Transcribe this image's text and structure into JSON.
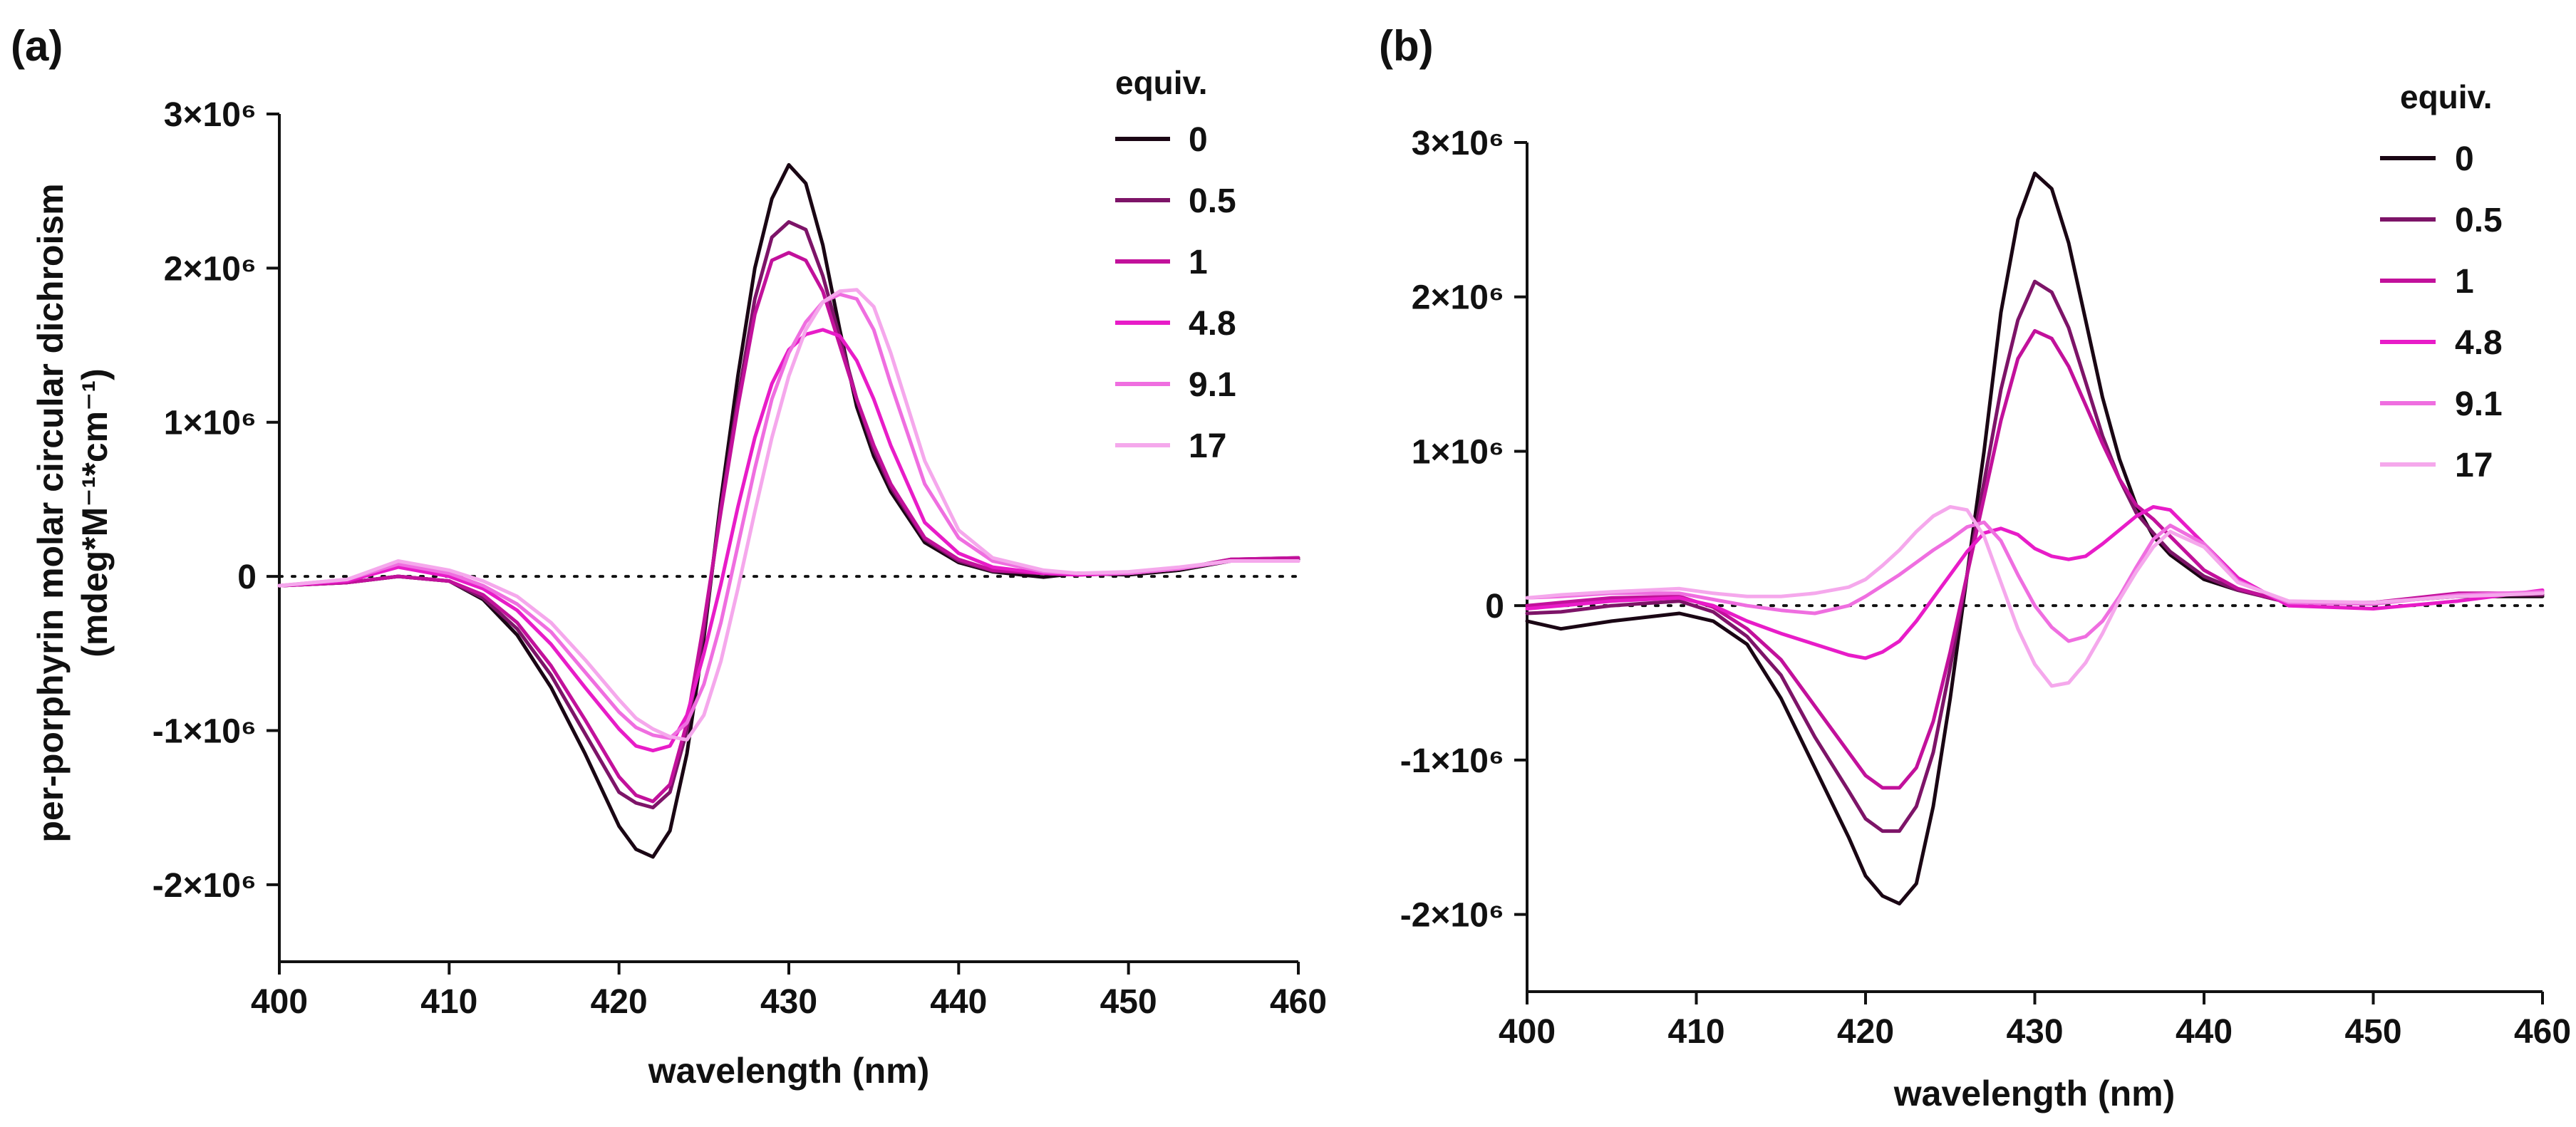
{
  "figure": {
    "ylabel_line1": "per-porphyrin molar circular dichroism",
    "ylabel_line2": "(mdeg*M⁻¹*cm⁻¹)",
    "xlabel": "wavelength (nm)"
  },
  "legend": {
    "title": "equiv."
  },
  "chart_data": [
    {
      "type": "line",
      "panel": "(a)",
      "xlabel": "wavelength (nm)",
      "ylabel": "per-porphyrin molar circular dichroism (mdeg*M⁻¹*cm⁻¹)",
      "xlim": [
        400,
        460
      ],
      "ylim": [
        -2500000,
        3000000
      ],
      "xticks": [
        400,
        410,
        420,
        430,
        440,
        450,
        460
      ],
      "xtick_labels": [
        "400",
        "410",
        "420",
        "430",
        "440",
        "450",
        "460"
      ],
      "yticks": [
        3000000,
        2000000,
        1000000,
        0,
        -1000000,
        -2000000
      ],
      "ytick_labels": [
        "3×10⁶",
        "2×10⁶",
        "1×10⁶",
        "0",
        "-1×10⁶",
        "-2×10⁶"
      ],
      "zero_line": "dotted",
      "legend_title": "equiv.",
      "legend_position": "top-right",
      "x": [
        400,
        404,
        407,
        410,
        412,
        414,
        416,
        418,
        420,
        421,
        422,
        423,
        424,
        425,
        426,
        427,
        428,
        429,
        430,
        431,
        432,
        433,
        434,
        435,
        436,
        438,
        440,
        442,
        445,
        447,
        450,
        453,
        456,
        460
      ],
      "series": [
        {
          "name": "0",
          "color": "#1a0614",
          "values": [
            -60000,
            -40000,
            0,
            -30000,
            -150000,
            -380000,
            -720000,
            -1150000,
            -1620000,
            -1770000,
            -1820000,
            -1650000,
            -1150000,
            -400000,
            500000,
            1300000,
            2000000,
            2450000,
            2670000,
            2550000,
            2150000,
            1600000,
            1100000,
            780000,
            550000,
            220000,
            90000,
            30000,
            -5000,
            20000,
            10000,
            40000,
            100000,
            110000
          ]
        },
        {
          "name": "0.5",
          "color": "#7d1468",
          "values": [
            -60000,
            -40000,
            0,
            -30000,
            -140000,
            -340000,
            -640000,
            -1020000,
            -1400000,
            -1470000,
            -1500000,
            -1400000,
            -1000000,
            -350000,
            450000,
            1150000,
            1800000,
            2200000,
            2300000,
            2250000,
            1950000,
            1550000,
            1150000,
            820000,
            580000,
            240000,
            100000,
            35000,
            20000,
            10000,
            20000,
            50000,
            110000,
            120000
          ]
        },
        {
          "name": "1",
          "color": "#c2119b",
          "values": [
            -60000,
            -40000,
            0,
            -30000,
            -120000,
            -300000,
            -580000,
            -930000,
            -1300000,
            -1420000,
            -1460000,
            -1350000,
            -950000,
            -300000,
            420000,
            1100000,
            1700000,
            2050000,
            2100000,
            2050000,
            1850000,
            1500000,
            1150000,
            850000,
            600000,
            250000,
            110000,
            40000,
            20000,
            10000,
            20000,
            50000,
            110000,
            120000
          ]
        },
        {
          "name": "4.8",
          "color": "#e81cc8",
          "values": [
            -60000,
            -30000,
            60000,
            0,
            -80000,
            -220000,
            -440000,
            -720000,
            -990000,
            -1100000,
            -1130000,
            -1100000,
            -900000,
            -500000,
            -50000,
            450000,
            900000,
            1250000,
            1470000,
            1570000,
            1600000,
            1560000,
            1400000,
            1150000,
            850000,
            350000,
            150000,
            60000,
            20000,
            10000,
            20000,
            50000,
            100000,
            100000
          ]
        },
        {
          "name": "9.1",
          "color": "#ef6ee0",
          "values": [
            -60000,
            -20000,
            80000,
            20000,
            -60000,
            -180000,
            -360000,
            -620000,
            -880000,
            -980000,
            -1030000,
            -1050000,
            -950000,
            -700000,
            -300000,
            200000,
            700000,
            1150000,
            1450000,
            1650000,
            1780000,
            1830000,
            1800000,
            1600000,
            1250000,
            600000,
            250000,
            100000,
            30000,
            20000,
            20000,
            50000,
            100000,
            100000
          ]
        },
        {
          "name": "17",
          "color": "#f5a8ec",
          "values": [
            -60000,
            -20000,
            100000,
            40000,
            -30000,
            -130000,
            -300000,
            -540000,
            -800000,
            -920000,
            -990000,
            -1040000,
            -1060000,
            -900000,
            -550000,
            -80000,
            420000,
            900000,
            1300000,
            1600000,
            1780000,
            1850000,
            1860000,
            1750000,
            1450000,
            750000,
            300000,
            120000,
            40000,
            20000,
            30000,
            60000,
            100000,
            100000
          ]
        }
      ]
    },
    {
      "type": "line",
      "panel": "(b)",
      "xlabel": "wavelength (nm)",
      "ylabel": "",
      "xlim": [
        400,
        460
      ],
      "ylim": [
        -2500000,
        3000000
      ],
      "xticks": [
        400,
        410,
        420,
        430,
        440,
        450,
        460
      ],
      "xtick_labels": [
        "400",
        "410",
        "420",
        "430",
        "440",
        "450",
        "460"
      ],
      "yticks": [
        3000000,
        2000000,
        1000000,
        0,
        -1000000,
        -2000000
      ],
      "ytick_labels": [
        "3×10⁶",
        "2×10⁶",
        "1×10⁶",
        "0",
        "-1×10⁶",
        "-2×10⁶"
      ],
      "zero_line": "dotted",
      "legend_title": "equiv.",
      "legend_position": "top-right",
      "x": [
        400,
        402,
        405,
        409,
        411,
        413,
        415,
        417,
        419,
        420,
        421,
        422,
        423,
        424,
        425,
        426,
        427,
        428,
        429,
        430,
        431,
        432,
        433,
        434,
        435,
        436,
        437,
        438,
        440,
        442,
        445,
        450,
        455,
        460
      ],
      "series": [
        {
          "name": "0",
          "color": "#1a0614",
          "values": [
            -100000,
            -150000,
            -100000,
            -50000,
            -100000,
            -250000,
            -600000,
            -1050000,
            -1500000,
            -1750000,
            -1880000,
            -1930000,
            -1800000,
            -1300000,
            -600000,
            200000,
            1000000,
            1900000,
            2500000,
            2800000,
            2700000,
            2350000,
            1850000,
            1350000,
            950000,
            650000,
            450000,
            330000,
            170000,
            100000,
            20000,
            20000,
            60000,
            60000
          ]
        },
        {
          "name": "0.5",
          "color": "#7d1468",
          "values": [
            -50000,
            -40000,
            0,
            30000,
            -40000,
            -200000,
            -450000,
            -850000,
            -1200000,
            -1380000,
            -1460000,
            -1460000,
            -1300000,
            -950000,
            -400000,
            200000,
            800000,
            1400000,
            1850000,
            2100000,
            2030000,
            1800000,
            1450000,
            1100000,
            820000,
            600000,
            470000,
            350000,
            190000,
            100000,
            20000,
            20000,
            70000,
            70000
          ]
        },
        {
          "name": "1",
          "color": "#c2119b",
          "values": [
            0,
            20000,
            50000,
            60000,
            -10000,
            -150000,
            -350000,
            -650000,
            -950000,
            -1100000,
            -1180000,
            -1180000,
            -1050000,
            -750000,
            -300000,
            200000,
            700000,
            1200000,
            1600000,
            1780000,
            1730000,
            1550000,
            1300000,
            1050000,
            820000,
            650000,
            560000,
            450000,
            230000,
            110000,
            20000,
            20000,
            80000,
            80000
          ]
        },
        {
          "name": "4.8",
          "color": "#e81cc8",
          "values": [
            -20000,
            0,
            30000,
            50000,
            0,
            -100000,
            -180000,
            -250000,
            -320000,
            -340000,
            -300000,
            -230000,
            -100000,
            50000,
            200000,
            350000,
            470000,
            500000,
            460000,
            370000,
            320000,
            300000,
            320000,
            400000,
            490000,
            580000,
            640000,
            620000,
            400000,
            180000,
            0,
            -20000,
            30000,
            100000
          ]
        },
        {
          "name": "9.1",
          "color": "#ef6ee0",
          "values": [
            50000,
            60000,
            80000,
            80000,
            40000,
            0,
            -30000,
            -50000,
            0,
            60000,
            130000,
            200000,
            280000,
            360000,
            430000,
            510000,
            540000,
            420000,
            200000,
            0,
            -140000,
            -230000,
            -200000,
            -100000,
            60000,
            250000,
            430000,
            520000,
            400000,
            160000,
            20000,
            10000,
            70000,
            90000
          ]
        },
        {
          "name": "17",
          "color": "#f5a8ec",
          "values": [
            50000,
            70000,
            90000,
            110000,
            80000,
            60000,
            60000,
            80000,
            120000,
            170000,
            260000,
            360000,
            480000,
            580000,
            640000,
            620000,
            450000,
            150000,
            -150000,
            -380000,
            -520000,
            -500000,
            -370000,
            -180000,
            40000,
            220000,
            380000,
            480000,
            380000,
            150000,
            30000,
            20000,
            60000,
            80000
          ]
        }
      ]
    }
  ]
}
